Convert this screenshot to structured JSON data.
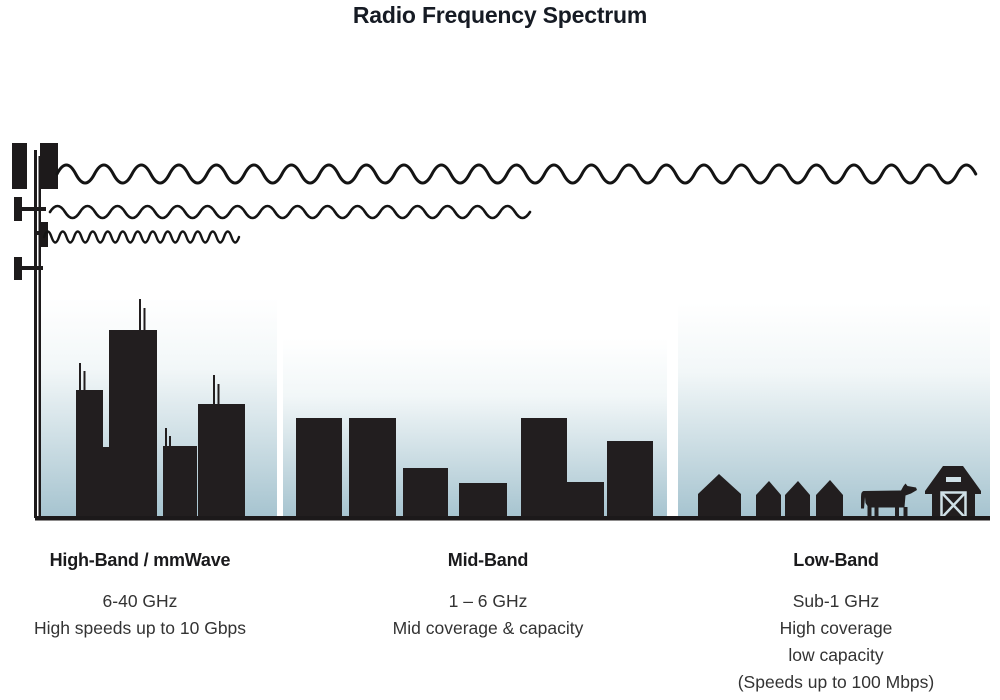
{
  "title": "Radio Frequency Spectrum",
  "bands": [
    {
      "name": "High-Band / mmWave",
      "details": [
        "6-40 GHz",
        "High speeds up to 10 Gbps"
      ],
      "scene_icon": "city-skyscrapers",
      "wave_icon": "short-wavelength-high-frequency-wave"
    },
    {
      "name": "Mid-Band",
      "details": [
        "1 – 6 GHz",
        "Mid coverage & capacity"
      ],
      "scene_icon": "mid-rise-buildings",
      "wave_icon": "medium-wavelength-wave"
    },
    {
      "name": "Low-Band",
      "details": [
        "Sub-1 GHz",
        "High coverage",
        "low capacity",
        "(Speeds up to 100 Mbps)"
      ],
      "scene_icon": "rural-houses-cow-barn",
      "wave_icon": "long-wavelength-low-frequency-wave"
    }
  ],
  "icons": [
    "cell-tower-icon",
    "radio-wave-long-icon",
    "radio-wave-medium-icon",
    "radio-wave-short-icon",
    "house-icon",
    "cow-icon",
    "barn-icon"
  ],
  "colors": {
    "silhouette": "#221e1f",
    "sky_gradient_top": "#ffffff",
    "sky_gradient_bottom": "#a5c3cf",
    "title_text": "#161b24",
    "body_text": "#333333"
  }
}
